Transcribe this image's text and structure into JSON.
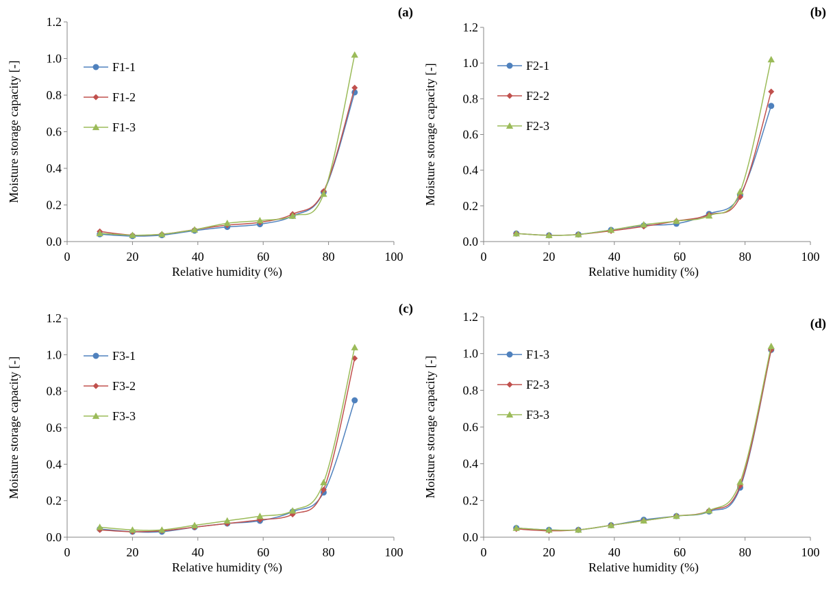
{
  "chart_data": [
    {
      "type": "line",
      "panel_label": "(a)",
      "xlabel": "Relative humidity (%)",
      "ylabel": "Moisture storage capacity [-]",
      "xlim": [
        0,
        100
      ],
      "ylim": [
        0,
        1.2
      ],
      "x_ticks": [
        "0",
        "20",
        "40",
        "60",
        "80",
        "100"
      ],
      "y_ticks": [
        "0.0",
        "0.2",
        "0.4",
        "0.6",
        "0.8",
        "1.0",
        "1.2"
      ],
      "legend_position": "top-left",
      "grid": false,
      "series": [
        {
          "name": "F1-1",
          "color": "#4f81bd",
          "marker": "circle",
          "x": [
            10,
            20,
            29,
            39,
            49,
            59,
            69,
            78.5,
            88
          ],
          "y": [
            0.04,
            0.03,
            0.035,
            0.06,
            0.08,
            0.095,
            0.14,
            0.27,
            0.815
          ]
        },
        {
          "name": "F1-2",
          "color": "#c0504d",
          "marker": "diamond",
          "x": [
            10,
            20,
            29,
            39,
            49,
            59,
            69,
            78.5,
            88
          ],
          "y": [
            0.055,
            0.035,
            0.04,
            0.065,
            0.09,
            0.105,
            0.15,
            0.275,
            0.84
          ]
        },
        {
          "name": "F1-3",
          "color": "#9bbb59",
          "marker": "triangle",
          "x": [
            10,
            20,
            29,
            39,
            49,
            59,
            69,
            78.5,
            88
          ],
          "y": [
            0.045,
            0.035,
            0.04,
            0.065,
            0.1,
            0.115,
            0.14,
            0.26,
            1.02
          ]
        }
      ]
    },
    {
      "type": "line",
      "panel_label": "(b)",
      "xlabel": "Relative humidity (%)",
      "ylabel": "Moisture storage capacity [-]",
      "xlim": [
        0,
        100
      ],
      "ylim": [
        0,
        1.2
      ],
      "x_ticks": [
        "0",
        "20",
        "40",
        "60",
        "80",
        "100"
      ],
      "y_ticks": [
        "0.0",
        "0.2",
        "0.4",
        "0.6",
        "0.8",
        "1.0",
        "1.2"
      ],
      "legend_position": "top-left",
      "grid": false,
      "series": [
        {
          "name": "F2-1",
          "color": "#4f81bd",
          "marker": "circle",
          "x": [
            10,
            20,
            29,
            39,
            49,
            59,
            69,
            78.5,
            88
          ],
          "y": [
            0.045,
            0.035,
            0.04,
            0.065,
            0.09,
            0.1,
            0.155,
            0.26,
            0.76
          ]
        },
        {
          "name": "F2-2",
          "color": "#c0504d",
          "marker": "diamond",
          "x": [
            10,
            20,
            29,
            39,
            49,
            59,
            69,
            78.5,
            88
          ],
          "y": [
            0.045,
            0.035,
            0.04,
            0.06,
            0.085,
            0.115,
            0.15,
            0.25,
            0.84
          ]
        },
        {
          "name": "F2-3",
          "color": "#9bbb59",
          "marker": "triangle",
          "x": [
            10,
            20,
            29,
            39,
            49,
            59,
            69,
            78.5,
            88
          ],
          "y": [
            0.045,
            0.035,
            0.04,
            0.065,
            0.095,
            0.115,
            0.145,
            0.28,
            1.02
          ]
        }
      ]
    },
    {
      "type": "line",
      "panel_label": "(c)",
      "xlabel": "Relative humidity (%)",
      "ylabel": "Moisture storage capacity [-]",
      "xlim": [
        0,
        100
      ],
      "ylim": [
        0,
        1.2
      ],
      "x_ticks": [
        "0",
        "20",
        "40",
        "60",
        "80",
        "100"
      ],
      "y_ticks": [
        "0.0",
        "0.2",
        "0.4",
        "0.6",
        "0.8",
        "1.0",
        "1.2"
      ],
      "legend_position": "top-left",
      "grid": false,
      "series": [
        {
          "name": "F3-1",
          "color": "#4f81bd",
          "marker": "circle",
          "x": [
            10,
            20,
            29,
            39,
            49,
            59,
            69,
            78.5,
            88
          ],
          "y": [
            0.045,
            0.03,
            0.03,
            0.055,
            0.075,
            0.09,
            0.14,
            0.245,
            0.75
          ]
        },
        {
          "name": "F3-2",
          "color": "#c0504d",
          "marker": "diamond",
          "x": [
            10,
            20,
            29,
            39,
            49,
            59,
            69,
            78.5,
            88
          ],
          "y": [
            0.04,
            0.03,
            0.035,
            0.055,
            0.075,
            0.095,
            0.125,
            0.26,
            0.98
          ]
        },
        {
          "name": "F3-3",
          "color": "#9bbb59",
          "marker": "triangle",
          "x": [
            10,
            20,
            29,
            39,
            49,
            59,
            69,
            78.5,
            88
          ],
          "y": [
            0.055,
            0.04,
            0.04,
            0.065,
            0.09,
            0.115,
            0.145,
            0.3,
            1.04
          ]
        }
      ]
    },
    {
      "type": "line",
      "panel_label": "(d)",
      "xlabel": "Relative humidity (%)",
      "ylabel": "Moisture storage capacity [-]",
      "xlim": [
        0,
        100
      ],
      "ylim": [
        0,
        1.2
      ],
      "x_ticks": [
        "0",
        "20",
        "40",
        "60",
        "80",
        "100"
      ],
      "y_ticks": [
        "0.0",
        "0.2",
        "0.4",
        "0.6",
        "0.8",
        "1.0",
        "1.2"
      ],
      "legend_position": "top-left",
      "grid": false,
      "series": [
        {
          "name": "F1-3",
          "color": "#4f81bd",
          "marker": "circle",
          "x": [
            10,
            20,
            29,
            39,
            49,
            59,
            69,
            78.5,
            88
          ],
          "y": [
            0.05,
            0.04,
            0.04,
            0.065,
            0.095,
            0.115,
            0.14,
            0.27,
            1.02
          ]
        },
        {
          "name": "F2-3",
          "color": "#c0504d",
          "marker": "diamond",
          "x": [
            10,
            20,
            29,
            39,
            49,
            59,
            69,
            78.5,
            88
          ],
          "y": [
            0.045,
            0.035,
            0.04,
            0.065,
            0.09,
            0.115,
            0.145,
            0.28,
            1.02
          ]
        },
        {
          "name": "F3-3",
          "color": "#9bbb59",
          "marker": "triangle",
          "x": [
            10,
            20,
            29,
            39,
            49,
            59,
            69,
            78.5,
            88
          ],
          "y": [
            0.05,
            0.04,
            0.04,
            0.065,
            0.09,
            0.115,
            0.145,
            0.3,
            1.04
          ]
        }
      ]
    }
  ]
}
